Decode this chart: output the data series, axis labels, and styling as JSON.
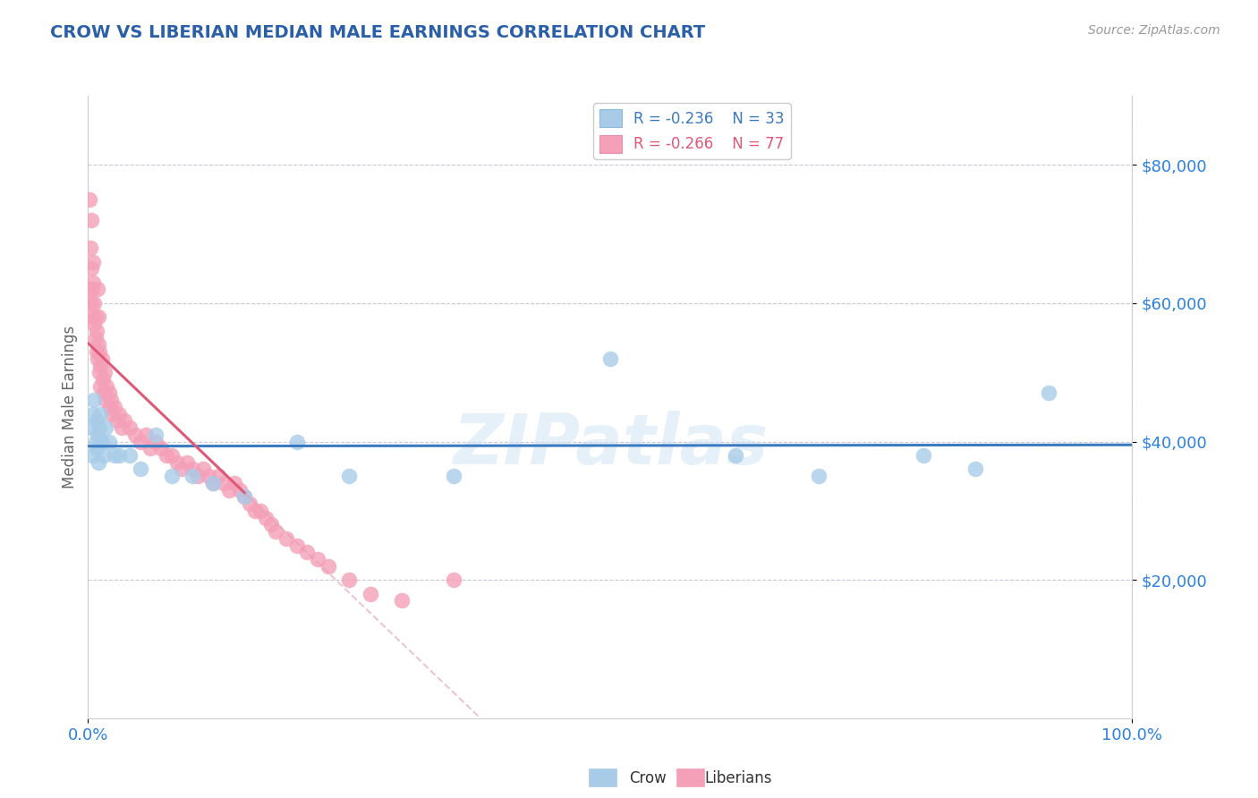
{
  "title": "CROW VS LIBERIAN MEDIAN MALE EARNINGS CORRELATION CHART",
  "source_text": "Source: ZipAtlas.com",
  "ylabel": "Median Male Earnings",
  "ytick_values": [
    20000,
    40000,
    60000,
    80000
  ],
  "ytick_labels": [
    "$20,000",
    "$40,000",
    "$60,000",
    "$80,000"
  ],
  "ylim": [
    0,
    90000
  ],
  "xlim": [
    0.0,
    100.0
  ],
  "xtick_values": [
    0.0,
    100.0
  ],
  "xtick_labels": [
    "0.0%",
    "100.0%"
  ],
  "crow_color": "#a8cce8",
  "liberian_color": "#f4a0b8",
  "crow_line_color": "#3a7abf",
  "liberian_line_color": "#e05878",
  "liberian_dash_color": "#e0a0b0",
  "background_color": "#ffffff",
  "grid_color": "#c8c8d8",
  "watermark": "ZIPatlas",
  "legend_r_crow": "R = -0.236",
  "legend_n_crow": "N = 33",
  "legend_r_lib": "R = -0.266",
  "legend_n_lib": "N = 77",
  "title_color": "#2b5fa8",
  "axis_tick_color": "#2b80e0",
  "ylabel_color": "#666666",
  "source_color": "#999999",
  "crow_x": [
    0.3,
    0.4,
    0.5,
    0.6,
    0.7,
    0.8,
    0.8,
    0.9,
    1.0,
    1.1,
    1.2,
    1.3,
    1.5,
    1.7,
    2.0,
    2.5,
    3.0,
    4.0,
    5.0,
    6.5,
    8.0,
    10.0,
    12.0,
    15.0,
    20.0,
    25.0,
    35.0,
    50.0,
    62.0,
    70.0,
    80.0,
    85.0,
    92.0
  ],
  "crow_y": [
    42000,
    38000,
    44000,
    46000,
    40000,
    43000,
    39000,
    41000,
    37000,
    42000,
    44000,
    40000,
    38000,
    42000,
    40000,
    38000,
    38000,
    38000,
    36000,
    41000,
    35000,
    35000,
    34000,
    32000,
    40000,
    35000,
    35000,
    52000,
    38000,
    35000,
    38000,
    36000,
    47000
  ],
  "lib_x": [
    0.1,
    0.2,
    0.2,
    0.3,
    0.3,
    0.3,
    0.4,
    0.4,
    0.5,
    0.5,
    0.6,
    0.6,
    0.7,
    0.7,
    0.8,
    0.8,
    0.9,
    0.9,
    1.0,
    1.0,
    1.1,
    1.1,
    1.2,
    1.2,
    1.3,
    1.4,
    1.5,
    1.6,
    1.7,
    1.8,
    2.0,
    2.1,
    2.2,
    2.3,
    2.5,
    2.7,
    3.0,
    3.2,
    3.5,
    4.0,
    4.5,
    5.0,
    5.5,
    6.0,
    6.5,
    7.0,
    7.5,
    8.0,
    8.5,
    9.0,
    9.5,
    10.0,
    10.5,
    11.0,
    11.5,
    12.0,
    12.5,
    13.0,
    13.5,
    14.0,
    14.5,
    15.0,
    15.5,
    16.0,
    16.5,
    17.0,
    17.5,
    18.0,
    19.0,
    20.0,
    21.0,
    22.0,
    23.0,
    25.0,
    27.0,
    30.0,
    35.0
  ],
  "lib_y": [
    75000,
    68000,
    62000,
    65000,
    72000,
    60000,
    58000,
    62000,
    66000,
    63000,
    57000,
    60000,
    55000,
    58000,
    53000,
    56000,
    62000,
    52000,
    54000,
    58000,
    50000,
    53000,
    51000,
    48000,
    52000,
    49000,
    47000,
    50000,
    46000,
    48000,
    47000,
    45000,
    46000,
    44000,
    45000,
    43000,
    44000,
    42000,
    43000,
    42000,
    41000,
    40000,
    41000,
    39000,
    40000,
    39000,
    38000,
    38000,
    37000,
    36000,
    37000,
    36000,
    35000,
    36000,
    35000,
    34000,
    35000,
    34000,
    33000,
    34000,
    33000,
    32000,
    31000,
    30000,
    30000,
    29000,
    28000,
    27000,
    26000,
    25000,
    24000,
    23000,
    22000,
    20000,
    18000,
    17000,
    20000
  ]
}
